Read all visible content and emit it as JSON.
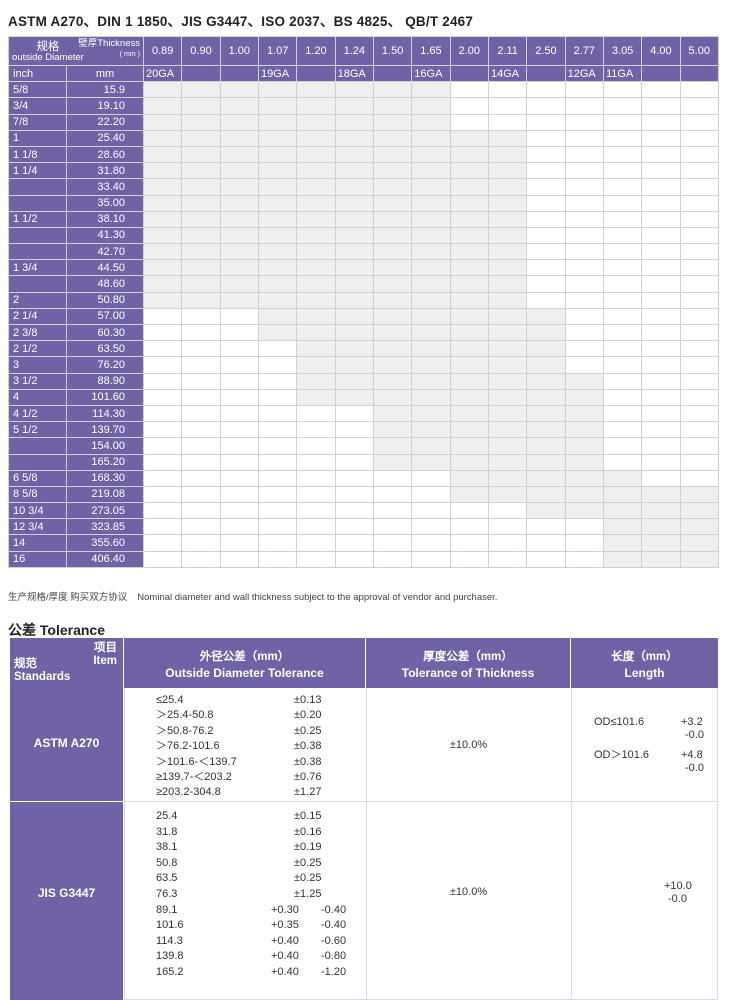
{
  "title": "ASTM A270、DIN 1 1850、JIS G3447、ISO 2037、BS 4825、 QB/T 2467",
  "grid": {
    "corner_top": "壁厚Thickness",
    "corner_top_unit": "( mm )",
    "corner_bottom_cn": "规格",
    "corner_bottom_en": "outside Diameter",
    "col_inch": "inch",
    "col_mm": "mm",
    "thickness": [
      "0.89",
      "0.90",
      "1.00",
      "1.07",
      "1.20",
      "1.24",
      "1.50",
      "1.65",
      "2.00",
      "2.11",
      "2.50",
      "2.77",
      "3.05",
      "4.00",
      "5.00"
    ],
    "gauges": [
      "20GA",
      "",
      "",
      "19GA",
      "",
      "18GA",
      "",
      "16GA",
      "",
      "14GA",
      "",
      "12GA",
      "11GA",
      "",
      ""
    ],
    "rows": [
      {
        "inch": "5/8",
        "mm": "15.9",
        "range": [
          0,
          7
        ]
      },
      {
        "inch": "3/4",
        "mm": "19.10",
        "range": [
          0,
          7
        ]
      },
      {
        "inch": "7/8",
        "mm": "22.20",
        "range": [
          0,
          7
        ]
      },
      {
        "inch": "1",
        "mm": "25.40",
        "range": [
          0,
          9
        ]
      },
      {
        "inch": "1 1/8",
        "mm": "28.60",
        "range": [
          0,
          9
        ]
      },
      {
        "inch": "1 1/4",
        "mm": "31.80",
        "range": [
          0,
          9
        ]
      },
      {
        "inch": "",
        "mm": "33.40",
        "range": [
          0,
          9
        ]
      },
      {
        "inch": "",
        "mm": "35.00",
        "range": [
          0,
          9
        ]
      },
      {
        "inch": "1 1/2",
        "mm": "38.10",
        "range": [
          0,
          9
        ]
      },
      {
        "inch": "",
        "mm": "41.30",
        "range": [
          0,
          9
        ]
      },
      {
        "inch": "",
        "mm": "42.70",
        "range": [
          0,
          9
        ]
      },
      {
        "inch": "1 3/4",
        "mm": "44.50",
        "range": [
          0,
          9
        ]
      },
      {
        "inch": "",
        "mm": "48.60",
        "range": [
          0,
          9
        ]
      },
      {
        "inch": "2",
        "mm": "50.80",
        "range": [
          0,
          9
        ]
      },
      {
        "inch": "2 1/4",
        "mm": "57.00",
        "range": [
          3,
          10
        ]
      },
      {
        "inch": "2 3/8",
        "mm": "60.30",
        "range": [
          3,
          10
        ]
      },
      {
        "inch": "2 1/2",
        "mm": "63.50",
        "range": [
          4,
          10
        ]
      },
      {
        "inch": "3",
        "mm": "76.20",
        "range": [
          4,
          10
        ]
      },
      {
        "inch": "3 1/2",
        "mm": "88.90",
        "range": [
          4,
          11
        ]
      },
      {
        "inch": "4",
        "mm": "101.60",
        "range": [
          4,
          11
        ]
      },
      {
        "inch": "4 1/2",
        "mm": "114.30",
        "range": [
          6,
          11
        ]
      },
      {
        "inch": "5 1/2",
        "mm": "139.70",
        "range": [
          6,
          11
        ]
      },
      {
        "inch": "",
        "mm": "154.00",
        "range": [
          6,
          11
        ]
      },
      {
        "inch": "",
        "mm": "165.20",
        "range": [
          6,
          11
        ]
      },
      {
        "inch": "6 5/8",
        "mm": "168.30",
        "range": [
          8,
          12
        ]
      },
      {
        "inch": "8 5/8",
        "mm": "219.08",
        "range": [
          8,
          14
        ]
      },
      {
        "inch": "10 3/4",
        "mm": "273.05",
        "range": [
          10,
          14
        ]
      },
      {
        "inch": "12 3/4",
        "mm": "323.85",
        "range": [
          12,
          14
        ]
      },
      {
        "inch": "14",
        "mm": "355.60",
        "range": [
          12,
          14
        ]
      },
      {
        "inch": "16",
        "mm": "406.40",
        "range": [
          12,
          14
        ]
      }
    ]
  },
  "note_cn": "生产规格/厚度 购买双方协议",
  "note_en": "Nominal diameter and wall thickness subject  to the approval of vendor and purchaser.",
  "tolerance": {
    "title": "公差 Tolerance",
    "corner_top_cn": "项目",
    "corner_top_en": "Item",
    "corner_bottom_cn": "规范",
    "corner_bottom_en": "Standards",
    "col_od_cn": "外径公差（mm）",
    "col_od_en": "Outside Diameter   Tolerance",
    "col_th_cn": "厚度公差（mm）",
    "col_th_en": "Tolerance of  Thickness",
    "col_len_cn": "长度（mm）",
    "col_len_en": "Length",
    "astm": {
      "name": "ASTM  A270",
      "od": [
        {
          "range": "≤25.4",
          "tol": "±0.13"
        },
        {
          "range": "＞25.4-50.8",
          "tol": "±0.20"
        },
        {
          "range": "＞50.8-76.2",
          "tol": "±0.25"
        },
        {
          "range": "＞76.2-101.6",
          "tol": "±0.38"
        },
        {
          "range": "＞101.6-＜139.7",
          "tol": "±0.38"
        },
        {
          "range": "≥139.7-＜203.2",
          "tol": "±0.76"
        },
        {
          "range": "≥203.2-304.8",
          "tol": "±1.27"
        }
      ],
      "thickness": "±10.0%",
      "len1_label": "OD≤101.6",
      "len1_plus": "+3.2",
      "len1_minus": "-0.0",
      "len2_label": "OD＞101.6",
      "len2_plus": "+4.8",
      "len2_minus": "-0.0"
    },
    "jis": {
      "name": "JIS  G3447",
      "od": [
        {
          "range": "25.4",
          "plus": "",
          "minus": "",
          "tol": "±0.15"
        },
        {
          "range": "31.8",
          "plus": "",
          "minus": "",
          "tol": "±0.16"
        },
        {
          "range": "38.1",
          "plus": "",
          "minus": "",
          "tol": "±0.19"
        },
        {
          "range": "50.8",
          "plus": "",
          "minus": "",
          "tol": "±0.25"
        },
        {
          "range": "63.5",
          "plus": "",
          "minus": "",
          "tol": "±0.25"
        },
        {
          "range": "76.3",
          "plus": "",
          "minus": "",
          "tol": "±1.25"
        },
        {
          "range": "89.1",
          "plus": "+0.30",
          "minus": "-0.40",
          "tol": ""
        },
        {
          "range": "101.6",
          "plus": "+0.35",
          "minus": "-0.40",
          "tol": ""
        },
        {
          "range": "114.3",
          "plus": "+0.40",
          "minus": "-0.60",
          "tol": ""
        },
        {
          "range": "139.8",
          "plus": "+0.40",
          "minus": "-0.80",
          "tol": ""
        },
        {
          "range": "165.2",
          "plus": "+0.40",
          "minus": "-1.20",
          "tol": ""
        }
      ],
      "thickness": "±10.0%",
      "len_plus": "+10.0",
      "len_minus": "-0.0"
    }
  }
}
